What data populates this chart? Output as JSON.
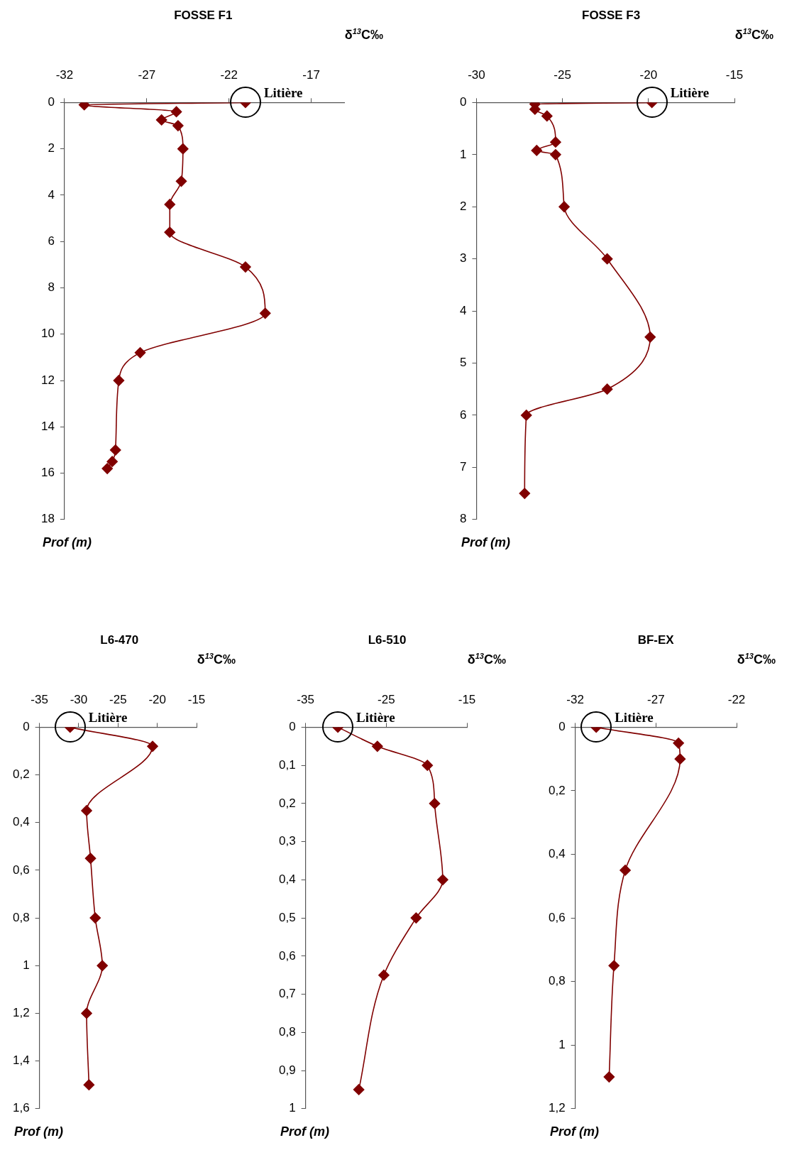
{
  "chart_data": [
    {
      "type": "line",
      "title": "FOSSE F1",
      "xlabel": "δ$^{13}$C‰",
      "ylabel": "Prof (m)",
      "color": "#800000",
      "marker": "diamond",
      "line_style": "solid",
      "grid": false,
      "x": [
        -21.0,
        -30.8,
        -25.2,
        -26.1,
        -25.1,
        -24.8,
        -24.9,
        -25.6,
        -25.6,
        -21.0,
        -19.8,
        -27.4,
        -28.7,
        -28.9,
        -29.1,
        -29.4
      ],
      "values": [
        0,
        0.1,
        0.4,
        0.75,
        1.0,
        2.0,
        3.4,
        4.4,
        5.6,
        7.1,
        9.1,
        10.8,
        12.0,
        15.0,
        15.5,
        15.8
      ],
      "xlim": [
        -32,
        -15
      ],
      "xticks": [
        -32,
        -27,
        -22,
        -17
      ],
      "ylim": [
        18,
        0
      ],
      "yticks": [
        0,
        2,
        4,
        6,
        8,
        10,
        12,
        14,
        16,
        18
      ],
      "annotations": [
        {
          "text": "Litière",
          "x": -21.0,
          "y": 0
        }
      ]
    },
    {
      "type": "line",
      "title": "FOSSE F3",
      "xlabel": "δ$^{13}$C‰",
      "ylabel": "Prof (m)",
      "color": "#800000",
      "marker": "diamond",
      "line_style": "solid",
      "grid": false,
      "x": [
        -19.8,
        -26.6,
        -26.6,
        -25.9,
        -25.4,
        -26.5,
        -25.4,
        -24.9,
        -22.4,
        -19.9,
        -22.4,
        -27.1,
        -27.2
      ],
      "values": [
        0,
        0.03,
        0.13,
        0.26,
        0.76,
        0.92,
        1.0,
        2.0,
        3.0,
        4.5,
        5.5,
        6.0,
        7.5
      ],
      "xlim": [
        -30,
        -15
      ],
      "xticks": [
        -30,
        -25,
        -20,
        -15
      ],
      "ylim": [
        8,
        0
      ],
      "yticks": [
        0,
        1,
        2,
        3,
        4,
        5,
        6,
        7,
        8
      ],
      "annotations": [
        {
          "text": "Litière",
          "x": -19.8,
          "y": 0
        }
      ]
    },
    {
      "type": "line",
      "title": "L6-470",
      "xlabel": "δ$^{13}$C‰",
      "ylabel": "Prof (m)",
      "color": "#800000",
      "marker": "diamond",
      "line_style": "solid",
      "grid": false,
      "x": [
        -31.1,
        -20.6,
        -29.0,
        -28.5,
        -27.9,
        -27.0,
        -29.0,
        -28.7
      ],
      "values": [
        0,
        0.08,
        0.35,
        0.55,
        0.8,
        1.0,
        1.2,
        1.5
      ],
      "xlim": [
        -35,
        -15
      ],
      "xticks": [
        -35,
        -30,
        -25,
        -20,
        -15
      ],
      "ylim": [
        1.6,
        0
      ],
      "yticks": [
        0,
        {
          "value": 0.2,
          "label": "0,2"
        },
        {
          "value": 0.4,
          "label": "0,4"
        },
        {
          "value": 0.6,
          "label": "0,6"
        },
        {
          "value": 0.8,
          "label": "0,8"
        },
        1,
        {
          "value": 1.2,
          "label": "1,2"
        },
        {
          "value": 1.4,
          "label": "1,4"
        },
        {
          "value": 1.6,
          "label": "1,6"
        }
      ],
      "annotations": [
        {
          "text": "Litière",
          "x": -31.1,
          "y": 0
        }
      ]
    },
    {
      "type": "line",
      "title": "L6-510",
      "xlabel": "δ$^{13}$C‰",
      "ylabel": "Prof (m)",
      "color": "#800000",
      "marker": "diamond",
      "line_style": "solid",
      "grid": false,
      "x": [
        -31.0,
        -26.1,
        -19.9,
        -19.0,
        -18.0,
        -21.3,
        -25.3,
        -28.4
      ],
      "values": [
        0,
        0.05,
        0.1,
        0.2,
        0.4,
        0.5,
        0.65,
        0.95
      ],
      "xlim": [
        -35,
        -15
      ],
      "xticks": [
        -35,
        -25,
        -15
      ],
      "ylim": [
        1,
        0
      ],
      "yticks": [
        0,
        {
          "value": 0.1,
          "label": "0,1"
        },
        {
          "value": 0.2,
          "label": "0,2"
        },
        {
          "value": 0.3,
          "label": "0,3"
        },
        {
          "value": 0.4,
          "label": "0,4"
        },
        {
          "value": 0.5,
          "label": "0,5"
        },
        {
          "value": 0.6,
          "label": "0,6"
        },
        {
          "value": 0.7,
          "label": "0,7"
        },
        {
          "value": 0.8,
          "label": "0,8"
        },
        {
          "value": 0.9,
          "label": "0,9"
        },
        1
      ],
      "annotations": [
        {
          "text": "Litière",
          "x": -31.0,
          "y": 0
        }
      ]
    },
    {
      "type": "line",
      "title": "BF-EX",
      "xlabel": "δ$^{13}$C‰",
      "ylabel": "Prof (m)",
      "color": "#800000",
      "marker": "diamond",
      "line_style": "solid",
      "grid": false,
      "x": [
        -30.7,
        -25.6,
        -25.5,
        -28.9,
        -29.6,
        -29.9
      ],
      "values": [
        0,
        0.05,
        0.1,
        0.45,
        0.75,
        1.1
      ],
      "xlim": [
        -32,
        -22
      ],
      "xticks": [
        -32,
        -27,
        -22
      ],
      "ylim": [
        1.2,
        0
      ],
      "yticks": [
        0,
        {
          "value": 0.2,
          "label": "0,2"
        },
        {
          "value": 0.4,
          "label": "0,4"
        },
        {
          "value": 0.6,
          "label": "0,6"
        },
        {
          "value": 0.8,
          "label": "0,8"
        },
        1,
        {
          "value": 1.2,
          "label": "1,2"
        }
      ],
      "annotations": [
        {
          "text": "Litière",
          "x": -30.7,
          "y": 0
        }
      ]
    }
  ]
}
